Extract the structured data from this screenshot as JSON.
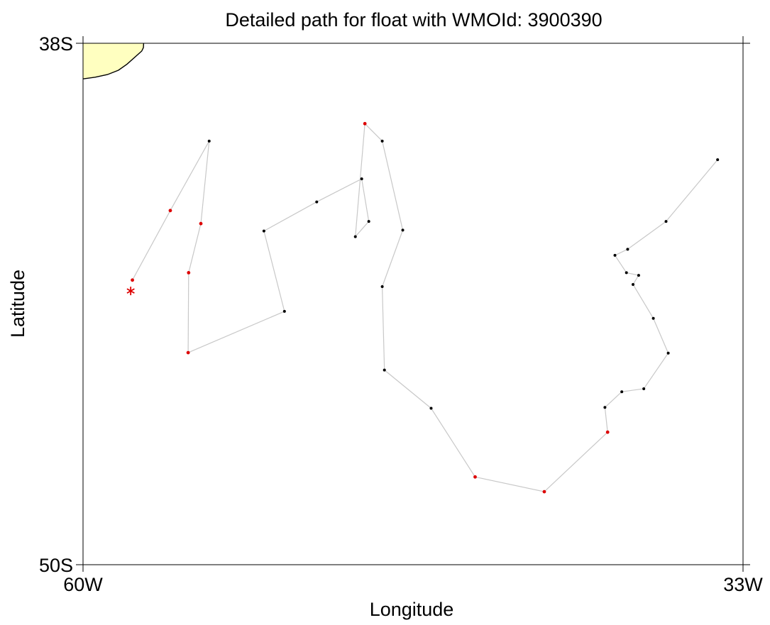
{
  "chart_data": {
    "type": "scatter",
    "title": "Detailed path for float with WMOId: 3900390",
    "xlabel": "Longitude",
    "ylabel": "Latitude",
    "x_ticks": [
      {
        "value": -60,
        "label": "60W"
      },
      {
        "value": -33,
        "label": "33W"
      }
    ],
    "y_ticks": [
      {
        "value": -38,
        "label": "38S"
      },
      {
        "value": -50,
        "label": "50S"
      }
    ],
    "xlim": [
      -60,
      -33
    ],
    "ylim": [
      -50,
      -38
    ],
    "grid": false,
    "colors": {
      "path_line": "#c8c8c8",
      "profile_point": "#000000",
      "flagged_point": "#dd0000",
      "deploy_marker": "#dd0000",
      "land_fill": "#ffffc0",
      "coastline": "#000000"
    },
    "deploy_position": {
      "lon": -58.05,
      "lat": -43.7
    },
    "path": [
      {
        "lon": -57.98,
        "lat": -43.45,
        "flagged": true
      },
      {
        "lon": -56.43,
        "lat": -41.85,
        "flagged": true
      },
      {
        "lon": -54.84,
        "lat": -40.25,
        "flagged": false
      },
      {
        "lon": -55.18,
        "lat": -42.15,
        "flagged": true
      },
      {
        "lon": -55.68,
        "lat": -43.28,
        "flagged": true
      },
      {
        "lon": -55.7,
        "lat": -45.12,
        "flagged": true
      },
      {
        "lon": -51.76,
        "lat": -44.17,
        "flagged": false
      },
      {
        "lon": -52.6,
        "lat": -42.32,
        "flagged": false
      },
      {
        "lon": -50.44,
        "lat": -41.65,
        "flagged": false
      },
      {
        "lon": -48.6,
        "lat": -41.12,
        "flagged": false
      },
      {
        "lon": -48.31,
        "lat": -42.1,
        "flagged": false
      },
      {
        "lon": -48.86,
        "lat": -42.45,
        "flagged": false
      },
      {
        "lon": -48.47,
        "lat": -39.85,
        "flagged": true
      },
      {
        "lon": -47.76,
        "lat": -40.25,
        "flagged": false
      },
      {
        "lon": -46.92,
        "lat": -42.3,
        "flagged": false
      },
      {
        "lon": -47.76,
        "lat": -43.6,
        "flagged": false
      },
      {
        "lon": -47.67,
        "lat": -45.52,
        "flagged": false
      },
      {
        "lon": -45.76,
        "lat": -46.4,
        "flagged": false
      },
      {
        "lon": -43.96,
        "lat": -47.98,
        "flagged": true
      },
      {
        "lon": -41.13,
        "lat": -48.32,
        "flagged": true
      },
      {
        "lon": -38.54,
        "lat": -46.95,
        "flagged": true
      },
      {
        "lon": -38.65,
        "lat": -46.38,
        "flagged": false
      },
      {
        "lon": -37.96,
        "lat": -46.02,
        "flagged": false
      },
      {
        "lon": -37.06,
        "lat": -45.95,
        "flagged": false
      },
      {
        "lon": -36.06,
        "lat": -45.13,
        "flagged": false
      },
      {
        "lon": -36.67,
        "lat": -44.33,
        "flagged": false
      },
      {
        "lon": -37.5,
        "lat": -43.55,
        "flagged": false
      },
      {
        "lon": -37.27,
        "lat": -43.34,
        "flagged": false
      },
      {
        "lon": -37.77,
        "lat": -43.28,
        "flagged": false
      },
      {
        "lon": -38.24,
        "lat": -42.88,
        "flagged": false
      },
      {
        "lon": -37.72,
        "lat": -42.74,
        "flagged": false
      },
      {
        "lon": -36.15,
        "lat": -42.1,
        "flagged": false
      },
      {
        "lon": -34.04,
        "lat": -40.68,
        "flagged": false
      }
    ],
    "land_outline": [
      {
        "lon": -60.0,
        "lat": -38.0
      },
      {
        "lon": -57.52,
        "lat": -38.0
      },
      {
        "lon": -57.53,
        "lat": -38.1
      },
      {
        "lon": -57.6,
        "lat": -38.18
      },
      {
        "lon": -58.2,
        "lat": -38.48
      },
      {
        "lon": -58.55,
        "lat": -38.62
      },
      {
        "lon": -59.0,
        "lat": -38.72
      },
      {
        "lon": -59.5,
        "lat": -38.78
      },
      {
        "lon": -60.0,
        "lat": -38.82
      }
    ]
  }
}
